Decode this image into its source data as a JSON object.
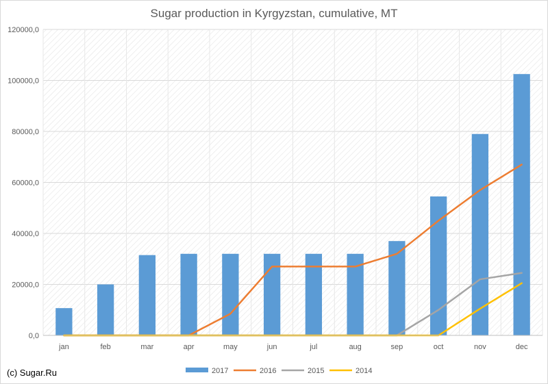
{
  "chart_data": {
    "type": "bar",
    "title": "Sugar production in Kyrgyzstan, cumulative, MT",
    "xlabel": "",
    "ylabel": "",
    "categories": [
      "jan",
      "feb",
      "mar",
      "apr",
      "may",
      "jun",
      "jul",
      "aug",
      "sep",
      "oct",
      "nov",
      "dec"
    ],
    "ylim": [
      0,
      120000
    ],
    "yticks": [
      "0,0",
      "20000,0",
      "40000,0",
      "60000,0",
      "80000,0",
      "100000,0",
      "120000,0"
    ],
    "grid": true,
    "legend_position": "bottom",
    "series": [
      {
        "name": "2017",
        "type": "bar",
        "color": "#5b9bd5",
        "values": [
          10700,
          20000,
          31500,
          32000,
          32000,
          32000,
          32000,
          32000,
          37000,
          54500,
          79000,
          102500
        ]
      },
      {
        "name": "2016",
        "type": "line",
        "color": "#ed7d31",
        "values": [
          0,
          0,
          0,
          0,
          8500,
          27000,
          27000,
          27000,
          32000,
          45000,
          57000,
          67000
        ]
      },
      {
        "name": "2015",
        "type": "line",
        "color": "#a5a5a5",
        "values": [
          0,
          0,
          0,
          0,
          0,
          0,
          0,
          0,
          0,
          10000,
          22000,
          24500
        ]
      },
      {
        "name": "2014",
        "type": "line",
        "color": "#ffc000",
        "values": [
          0,
          0,
          0,
          0,
          0,
          0,
          0,
          0,
          0,
          0,
          10500,
          20500
        ]
      }
    ]
  },
  "source": "(c) Sugar.Ru"
}
